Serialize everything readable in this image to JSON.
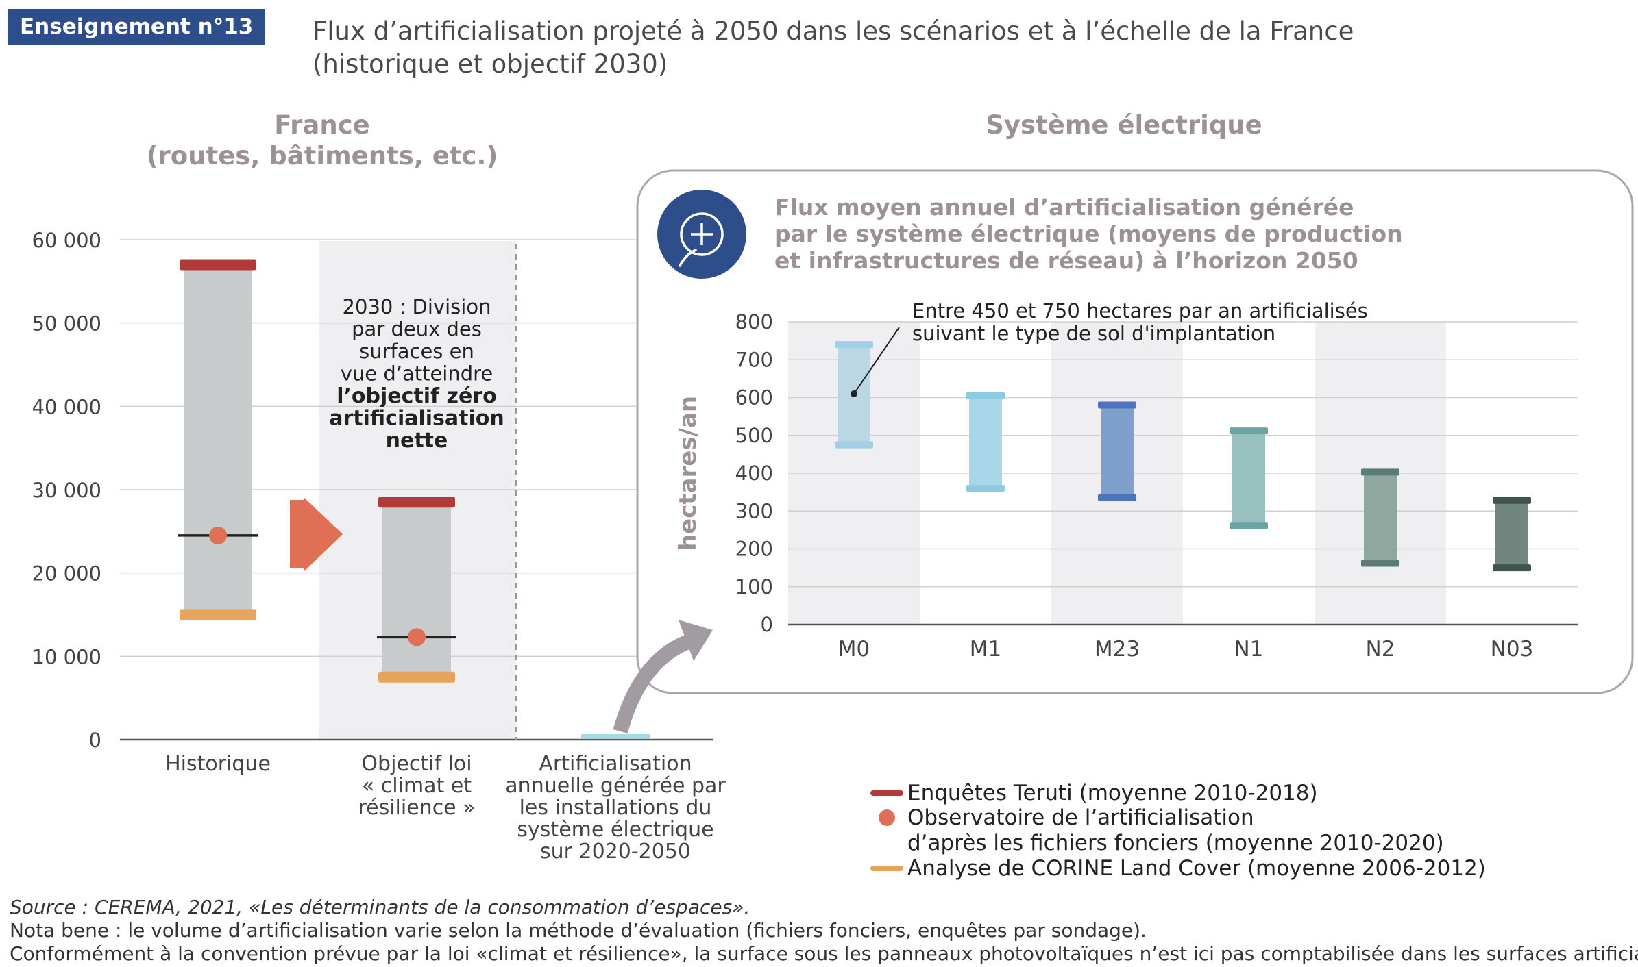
{
  "header": {
    "badge": "Enseignement n°13",
    "title_line1": "Flux d’artificialisation projeté à 2050 dans les scénarios et à l’échelle de la France",
    "title_line2": "(historique et objectif 2030)"
  },
  "sections": {
    "france_line1": "France",
    "france_line2": "(routes, bâtiments, etc.)",
    "electric": "Système électrique"
  },
  "colors": {
    "teruti": "#b23a3a",
    "observatoire": "#e07055",
    "corine": "#e8a45a",
    "range_fill": "#c8cbcb",
    "band": "#efeef1",
    "arrow": "#e07055",
    "circle": "#2d4d8b",
    "badge": "#2d4d8b"
  },
  "chart_data": [
    {
      "type": "bar",
      "ylim": [
        0,
        60000
      ],
      "yticks": [
        "0",
        "10 000",
        "20 000",
        "30 000",
        "40 000",
        "50 000",
        "60 000"
      ],
      "ytick_values": [
        0,
        10000,
        20000,
        30000,
        40000,
        50000,
        60000
      ],
      "categories": [
        [
          "Historique"
        ],
        [
          "Objectif loi",
          "« climat et",
          "résilience »"
        ],
        [
          "Artificialisation",
          "annuelle générée par",
          "les installations du",
          "système électrique",
          "sur 2020-2050"
        ]
      ],
      "ranges": [
        {
          "low": 15000,
          "high": 57000,
          "mid": 24500
        },
        {
          "low": 7500,
          "high": 28500,
          "mid": 12300
        },
        {
          "low": 450,
          "high": 750,
          "mid": null
        }
      ],
      "annotation": {
        "lines": [
          "2030 : Division",
          "par deux des",
          "surfaces en",
          "vue d’atteindre"
        ],
        "bold_lines": [
          "l’objectif zéro",
          "artificialisation",
          "nette"
        ]
      }
    },
    {
      "type": "bar",
      "title": [
        "Flux moyen annuel d’artificialisation générée",
        "par le système électrique (moyens de production",
        "et infrastructures de réseau) à l’horizon 2050"
      ],
      "ylabel": "hectares/an",
      "ylim": [
        0,
        800
      ],
      "yticks": [
        "0",
        "100",
        "200",
        "300",
        "400",
        "500",
        "600",
        "700",
        "800"
      ],
      "ytick_values": [
        0,
        100,
        200,
        300,
        400,
        500,
        600,
        700,
        800
      ],
      "categories": [
        "M0",
        "M1",
        "M23",
        "N1",
        "N2",
        "N03"
      ],
      "series": [
        {
          "low": 475,
          "high": 740,
          "color": "#bad7e3",
          "cap": "#9fd0e6"
        },
        {
          "low": 360,
          "high": 605,
          "color": "#a8d8e8",
          "cap": "#8ccbe2"
        },
        {
          "low": 335,
          "high": 580,
          "color": "#7f9fcc",
          "cap": "#4c74b8"
        },
        {
          "low": 262,
          "high": 512,
          "color": "#98c0bf",
          "cap": "#6ca3a3"
        },
        {
          "low": 162,
          "high": 403,
          "color": "#8ea79f",
          "cap": "#5a7c74"
        },
        {
          "low": 150,
          "high": 328,
          "color": "#71867e",
          "cap": "#3f544d"
        }
      ],
      "annotation": {
        "line1": "Entre 450 et 750 hectares par an artificialisés",
        "line2": "suivant le type de sol d'implantation",
        "point_value": 610
      }
    }
  ],
  "legend": [
    {
      "label": "Enquêtes Teruti (moyenne 2010-2018)",
      "kind": "line",
      "color": "#b23a3a"
    },
    {
      "label": "Observatoire de l’artificialisation",
      "label2": "d’après les fichiers fonciers (moyenne 2010-2020)",
      "kind": "dot",
      "color": "#e07055"
    },
    {
      "label": "Analyse de CORINE Land Cover (moyenne 2006-2012)",
      "kind": "line",
      "color": "#e8a45a"
    }
  ],
  "footer": {
    "source": "Source : CEREMA, 2021, «Les déterminants de la consommation d’espaces».",
    "nota": "Nota bene : le volume d’artificialisation varie selon la méthode d’évaluation (fichiers fonciers, enquêtes par sondage).",
    "convention": "Conformément à la convention prévue par la loi «climat et résilience», la surface sous les panneaux photovoltaïques n’est ici pas comptabilisée dans les surfaces artificialisées."
  }
}
